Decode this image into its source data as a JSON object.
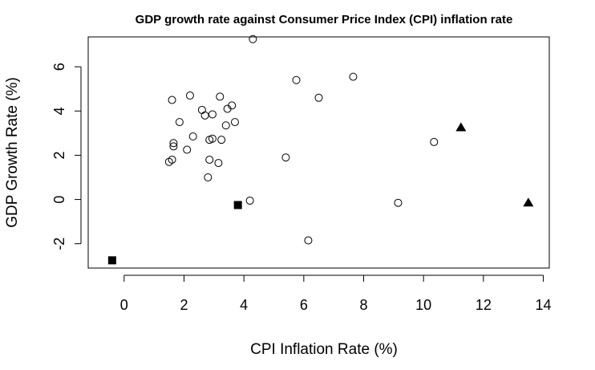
{
  "chart_data": {
    "type": "scatter",
    "title": "GDP growth rate against Consumer Price Index (CPI) inflation rate",
    "xlabel": "CPI Inflation Rate (%)",
    "ylabel": "GDP Growth Rate (%)",
    "xlim": [
      -1.2,
      14.2
    ],
    "ylim": [
      -3.1,
      7.35
    ],
    "xticks": [
      0,
      2,
      4,
      6,
      8,
      10,
      12,
      14
    ],
    "yticks": [
      -2,
      0,
      2,
      4,
      6
    ],
    "xtick_labels": [
      "0",
      "2",
      "4",
      "6",
      "8",
      "10",
      "12",
      "14"
    ],
    "ytick_labels": [
      "-2",
      "0",
      "2",
      "4",
      "6"
    ],
    "grid": false,
    "legend": null,
    "series": [
      {
        "marker": "open-circle",
        "points": [
          [
            1.5,
            1.7
          ],
          [
            1.6,
            1.8
          ],
          [
            1.6,
            4.5
          ],
          [
            1.65,
            2.4
          ],
          [
            1.65,
            2.55
          ],
          [
            1.85,
            3.5
          ],
          [
            2.1,
            2.25
          ],
          [
            2.2,
            4.7
          ],
          [
            2.3,
            2.85
          ],
          [
            2.6,
            4.05
          ],
          [
            2.7,
            3.8
          ],
          [
            2.8,
            1.0
          ],
          [
            2.85,
            2.7
          ],
          [
            2.85,
            1.8
          ],
          [
            2.95,
            3.85
          ],
          [
            2.95,
            2.75
          ],
          [
            3.15,
            1.65
          ],
          [
            3.2,
            4.65
          ],
          [
            3.25,
            2.7
          ],
          [
            3.4,
            3.35
          ],
          [
            3.45,
            4.1
          ],
          [
            3.6,
            4.25
          ],
          [
            3.7,
            3.5
          ],
          [
            4.2,
            -0.05
          ],
          [
            4.3,
            7.25
          ],
          [
            5.4,
            1.9
          ],
          [
            5.75,
            5.4
          ],
          [
            6.15,
            -1.85
          ],
          [
            6.5,
            4.6
          ],
          [
            7.65,
            5.55
          ],
          [
            9.15,
            -0.15
          ],
          [
            10.35,
            2.6
          ]
        ]
      },
      {
        "marker": "filled-square",
        "points": [
          [
            -0.4,
            -2.75
          ],
          [
            3.8,
            -0.25
          ]
        ]
      },
      {
        "marker": "filled-triangle",
        "points": [
          [
            11.25,
            3.25
          ],
          [
            13.5,
            -0.15
          ]
        ]
      }
    ]
  }
}
